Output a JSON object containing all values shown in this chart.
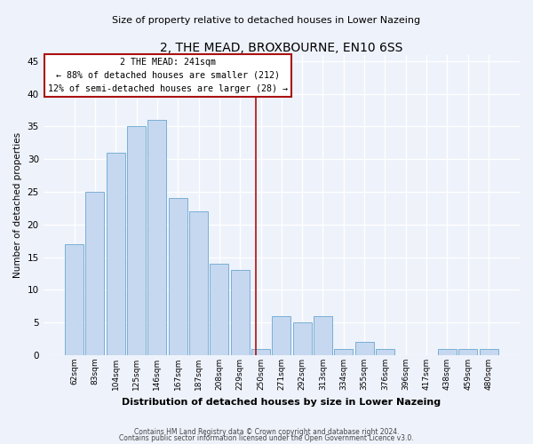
{
  "title": "2, THE MEAD, BROXBOURNE, EN10 6SS",
  "subtitle": "Size of property relative to detached houses in Lower Nazeing",
  "xlabel": "Distribution of detached houses by size in Lower Nazeing",
  "ylabel": "Number of detached properties",
  "categories": [
    "62sqm",
    "83sqm",
    "104sqm",
    "125sqm",
    "146sqm",
    "167sqm",
    "187sqm",
    "208sqm",
    "229sqm",
    "250sqm",
    "271sqm",
    "292sqm",
    "313sqm",
    "334sqm",
    "355sqm",
    "376sqm",
    "396sqm",
    "417sqm",
    "438sqm",
    "459sqm",
    "480sqm"
  ],
  "values": [
    17,
    25,
    31,
    35,
    36,
    24,
    22,
    14,
    13,
    1,
    6,
    5,
    6,
    1,
    2,
    1,
    0,
    0,
    1,
    1,
    1
  ],
  "bar_color": "#c5d8f0",
  "bar_edge_color": "#7aafd4",
  "ylim": [
    0,
    46
  ],
  "yticks": [
    0,
    5,
    10,
    15,
    20,
    25,
    30,
    35,
    40,
    45
  ],
  "vline_x": 8.78,
  "vline_color": "#aa1111",
  "annotation_title": "2 THE MEAD: 241sqm",
  "annotation_line1": "← 88% of detached houses are smaller (212)",
  "annotation_line2": "12% of semi-detached houses are larger (28) →",
  "annotation_box_color": "#aa1111",
  "background_color": "#eef2fb",
  "grid_color": "#ffffff",
  "footer1": "Contains HM Land Registry data © Crown copyright and database right 2024.",
  "footer2": "Contains public sector information licensed under the Open Government Licence v3.0."
}
